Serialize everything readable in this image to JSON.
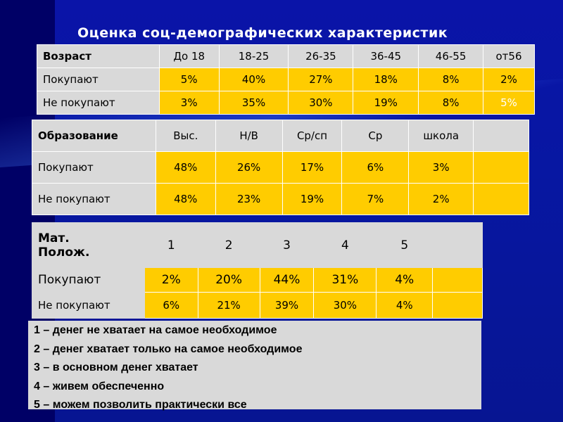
{
  "title": "Оценка соц-демографических характеристик",
  "age_table": {
    "header": [
      "Возраст",
      "До 18",
      "18-25",
      "26-35",
      "36-45",
      "46-55",
      "от56"
    ],
    "rows": [
      {
        "label": "Покупают",
        "values": [
          "5%",
          "40%",
          "27%",
          "18%",
          "8%",
          "2%"
        ]
      },
      {
        "label": "Не покупают",
        "values": [
          "3%",
          "35%",
          "30%",
          "19%",
          "8%",
          "5%"
        ]
      }
    ]
  },
  "education_table": {
    "header": [
      "Образование",
      "Выс.",
      "Н/В",
      "Ср/сп",
      "Ср",
      "школа",
      ""
    ],
    "rows": [
      {
        "label": "Покупают",
        "values": [
          "48%",
          "26%",
          "17%",
          "6%",
          "3%",
          ""
        ]
      },
      {
        "label": "Не покупают",
        "values": [
          "48%",
          "23%",
          "19%",
          "7%",
          "2%",
          ""
        ]
      }
    ]
  },
  "wealth_table": {
    "header_line1": "Мат.",
    "header_line2": "Полож.",
    "header": [
      "1",
      "2",
      "3",
      "4",
      "5",
      ""
    ],
    "rows": [
      {
        "label": "Покупают",
        "values": [
          "2%",
          "20%",
          "44%",
          "31%",
          "4%",
          ""
        ]
      },
      {
        "label": "Не покупают",
        "values": [
          "6%",
          "21%",
          "39%",
          "30%",
          "4%",
          ""
        ]
      }
    ]
  },
  "legend": [
    "1 – денег не хватает на самое необходимое",
    "2 – денег хватает только на самое необходимое",
    "3 – в основном денег хватает",
    "4 – живем обеспеченно",
    "5 – можем позволить практически все"
  ],
  "colors": {
    "background": "#000066",
    "panel": "#0717a2",
    "cell_gray": "#d9d9d9",
    "cell_yellow": "#ffcc00"
  }
}
